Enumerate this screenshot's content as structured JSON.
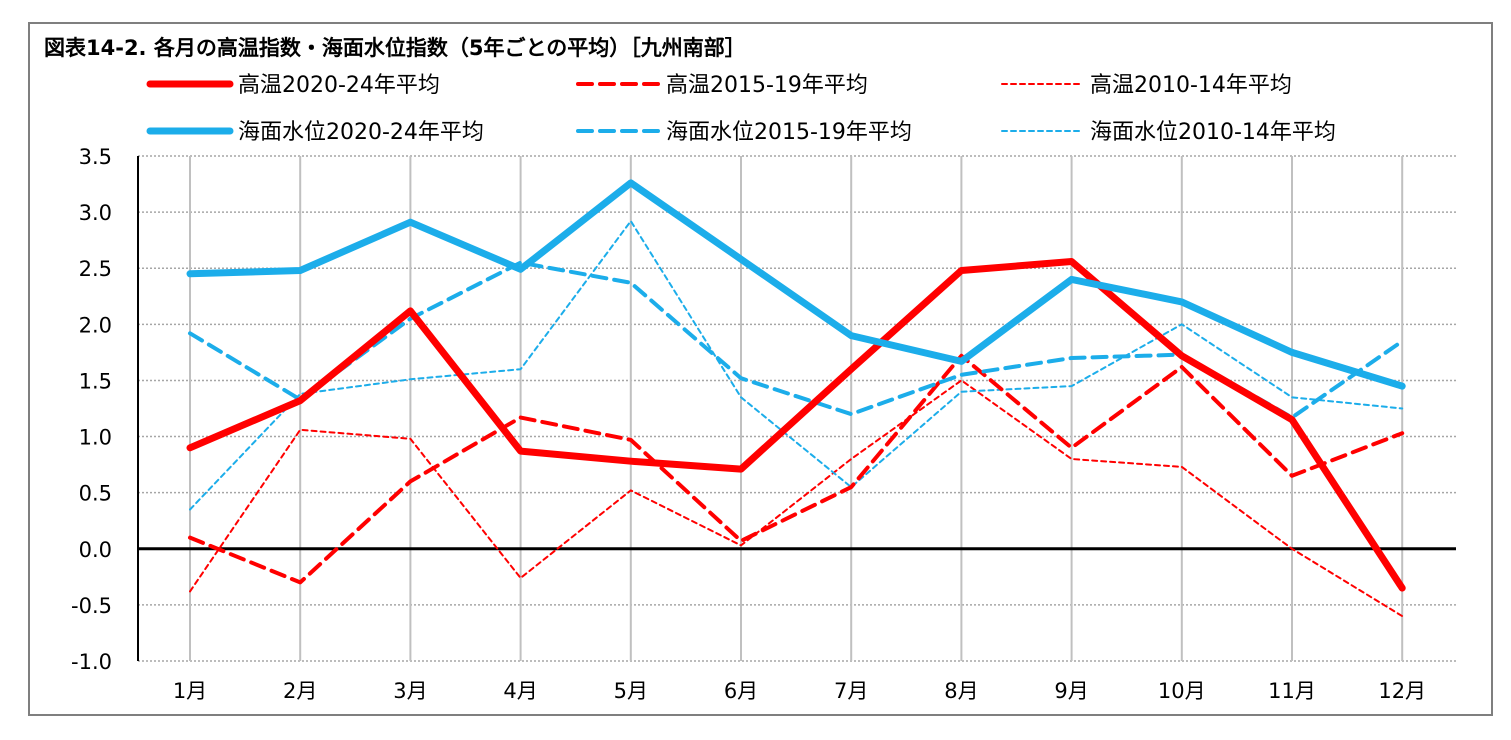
{
  "chart_data": {
    "type": "line",
    "title": "図表14-2. 各月の高温指数・海面水位指数（5年ごとの平均）［九州南部］",
    "categories": [
      "1月",
      "2月",
      "3月",
      "4月",
      "5月",
      "6月",
      "7月",
      "8月",
      "9月",
      "10月",
      "11月",
      "12月"
    ],
    "ylim": [
      -1.0,
      3.5
    ],
    "yticks": [
      "3.5",
      "3.0",
      "2.5",
      "2.0",
      "1.5",
      "1.0",
      "0.5",
      "0.0",
      "-0.5",
      "-1.0"
    ],
    "grid": true,
    "legend_position": "top",
    "series": [
      {
        "name": "高温2020-24年平均",
        "color": "#ff0000",
        "style": "solid-thick",
        "values": [
          0.9,
          1.32,
          2.12,
          0.87,
          0.78,
          0.71,
          1.6,
          2.48,
          2.56,
          1.72,
          1.15,
          -0.35
        ]
      },
      {
        "name": "高温2015-19年平均",
        "color": "#ff0000",
        "style": "dash-medium",
        "values": [
          0.1,
          -0.3,
          0.6,
          1.17,
          0.97,
          0.07,
          0.55,
          1.72,
          0.9,
          1.62,
          0.65,
          1.03
        ]
      },
      {
        "name": "高温2010-14年平均",
        "color": "#ff0000",
        "style": "dash-thin",
        "values": [
          -0.38,
          1.06,
          0.98,
          -0.26,
          0.52,
          0.03,
          0.8,
          1.5,
          0.8,
          0.73,
          0.0,
          -0.6
        ]
      },
      {
        "name": "海面水位2020-24年平均",
        "color": "#1cadea",
        "style": "solid-thick",
        "values": [
          2.45,
          2.48,
          2.91,
          2.49,
          3.26,
          2.58,
          1.9,
          1.67,
          2.4,
          2.2,
          1.75,
          1.45
        ]
      },
      {
        "name": "海面水位2015-19年平均",
        "color": "#1cadea",
        "style": "dash-medium",
        "values": [
          1.92,
          1.33,
          2.05,
          2.55,
          2.37,
          1.52,
          1.2,
          1.55,
          1.7,
          1.73,
          1.17,
          1.85
        ]
      },
      {
        "name": "海面水位2010-14年平均",
        "color": "#1cadea",
        "style": "dash-thin",
        "values": [
          0.35,
          1.38,
          1.51,
          1.6,
          2.92,
          1.35,
          0.55,
          1.4,
          1.45,
          2.0,
          1.35,
          1.25
        ]
      }
    ]
  }
}
